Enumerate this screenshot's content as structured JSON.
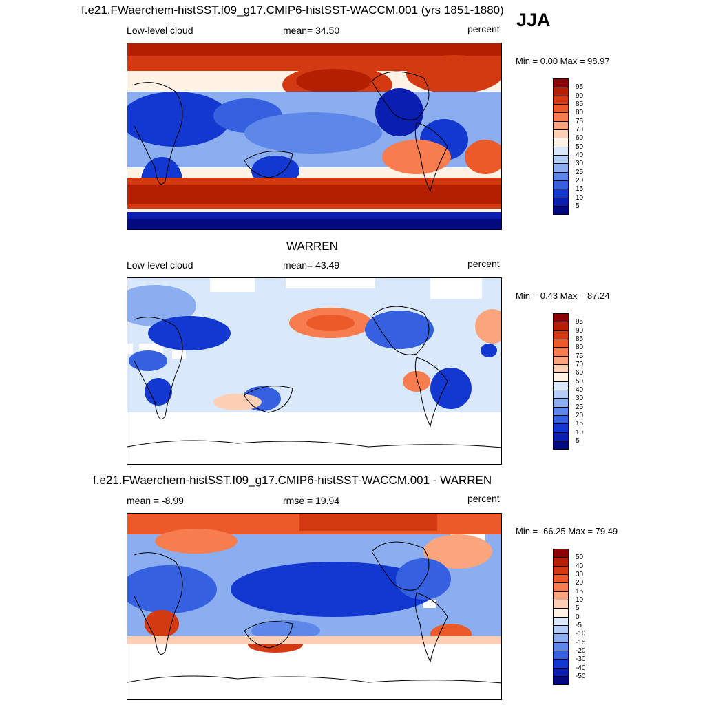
{
  "season": "JJA",
  "panels": [
    {
      "title": "f.e21.FWaerchem-histSST.f09_g17.CMIP6-histSST-WACCM.001 (yrs 1851-1880)",
      "left_label": "Low-level cloud",
      "center_label": "mean=  34.50",
      "right_label": "percent",
      "minmax": "Min =   0.00 Max =  98.97",
      "levels": [
        "95",
        "90",
        "85",
        "80",
        "75",
        "70",
        "60",
        "50",
        "40",
        "30",
        "25",
        "20",
        "15",
        "10",
        "5"
      ]
    },
    {
      "title": "WARREN",
      "left_label": "Low-level cloud",
      "center_label": "mean=  43.49",
      "right_label": "percent",
      "minmax": "Min =   0.43 Max =  87.24",
      "levels": [
        "95",
        "90",
        "85",
        "80",
        "75",
        "70",
        "60",
        "50",
        "40",
        "30",
        "25",
        "20",
        "15",
        "10",
        "5"
      ]
    },
    {
      "title": "f.e21.FWaerchem-histSST.f09_g17.CMIP6-histSST-WACCM.001 - WARREN",
      "left_label": "mean =  -8.99",
      "center_label": "rmse =  19.94",
      "right_label": "percent",
      "minmax": "Min = -66.25 Max =  79.49",
      "levels": [
        "50",
        "40",
        "30",
        "20",
        "15",
        "10",
        "5",
        "0",
        "-5",
        "-10",
        "-15",
        "-20",
        "-30",
        "-40",
        "-50"
      ]
    }
  ],
  "colors": {
    "palette": [
      "#8b0000",
      "#b22000",
      "#d43a12",
      "#ec5a2a",
      "#f77c4e",
      "#fba57e",
      "#fdd0b6",
      "#fff3e6",
      "#d9e8fb",
      "#b2cdf6",
      "#8aaef0",
      "#5d88e9",
      "#3560e0",
      "#1238d0",
      "#0a1fb0",
      "#030a80"
    ]
  }
}
